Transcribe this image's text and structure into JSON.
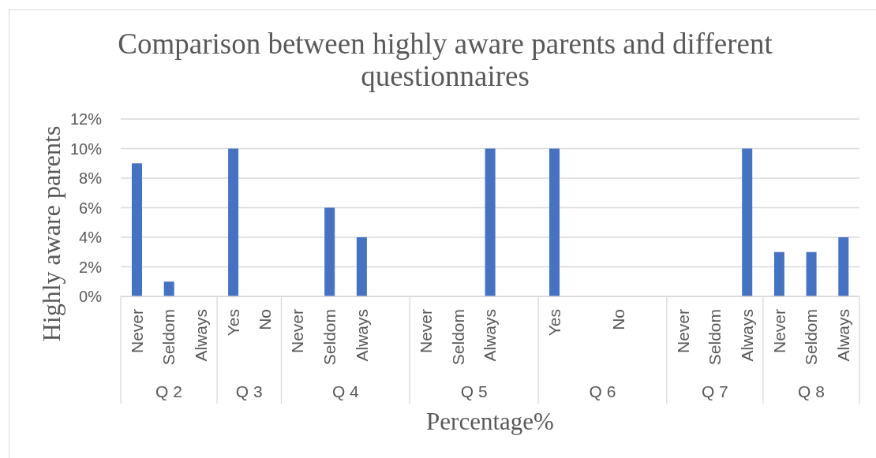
{
  "chart_data": {
    "type": "bar",
    "title": "Comparison between highly aware parents and different questionnaires",
    "xlabel": "Percentage%",
    "ylabel": "Highly aware parents",
    "categories": [
      "Never",
      "Seldom",
      "Always",
      "Yes",
      "No",
      "Never",
      "Seldom",
      "Always",
      null,
      "Never",
      "Seldom",
      "Always",
      null,
      "Yes",
      null,
      "No",
      null,
      "Never",
      "Seldom",
      "Always",
      "Never",
      "Seldom",
      "Always"
    ],
    "values": [
      9,
      1,
      0,
      10,
      0,
      0,
      6,
      4,
      null,
      0,
      0,
      10,
      null,
      10,
      null,
      0,
      null,
      0,
      0,
      10,
      3,
      3,
      4
    ],
    "color": "#4472c4",
    "ylim": [
      0,
      12
    ],
    "yticks": [
      {
        "value": 0,
        "label": "0%"
      },
      {
        "value": 2,
        "label": "2%"
      },
      {
        "value": 4,
        "label": "4%"
      },
      {
        "value": 6,
        "label": "6%"
      },
      {
        "value": 8,
        "label": "8%"
      },
      {
        "value": 10,
        "label": "10%"
      },
      {
        "value": 12,
        "label": "12%"
      }
    ],
    "grid": "y",
    "annotations": [
      "Q 2",
      "Q 3",
      "Q 4",
      "Q 5",
      "Q 6",
      "Q 7",
      "Q 8"
    ]
  }
}
